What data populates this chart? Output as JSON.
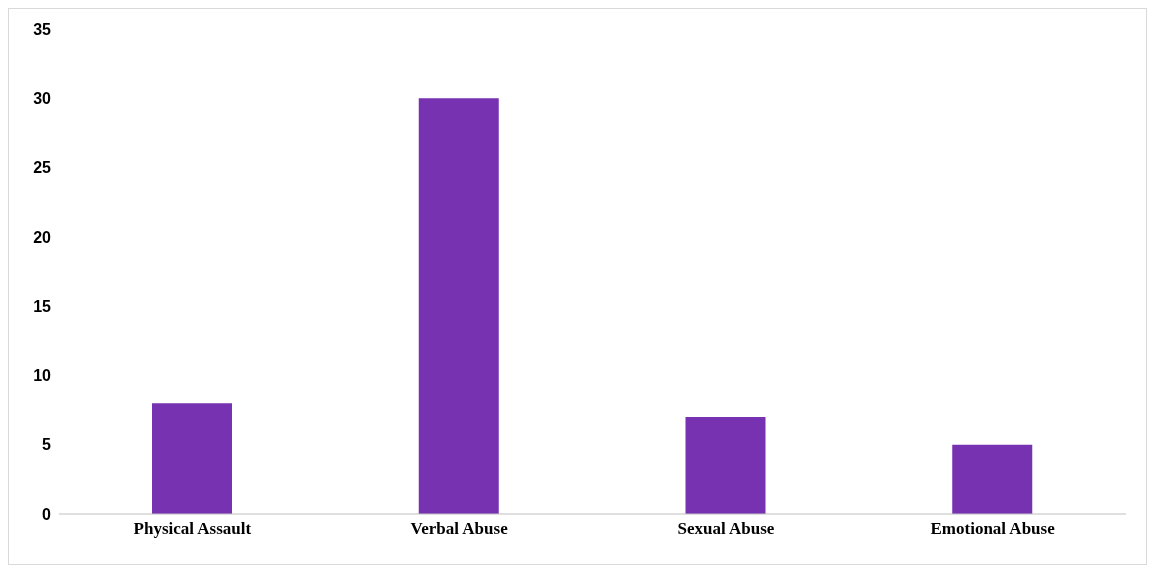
{
  "chart_data": {
    "type": "bar",
    "categories": [
      "Physical Assault",
      "Verbal Abuse",
      "Sexual Abuse",
      "Emotional Abuse"
    ],
    "values": [
      8,
      30,
      7,
      5
    ],
    "color": "#7632b0",
    "ylim": [
      0,
      35
    ],
    "yticks": [
      0,
      5,
      10,
      15,
      20,
      25,
      30,
      35
    ],
    "grid": false
  }
}
